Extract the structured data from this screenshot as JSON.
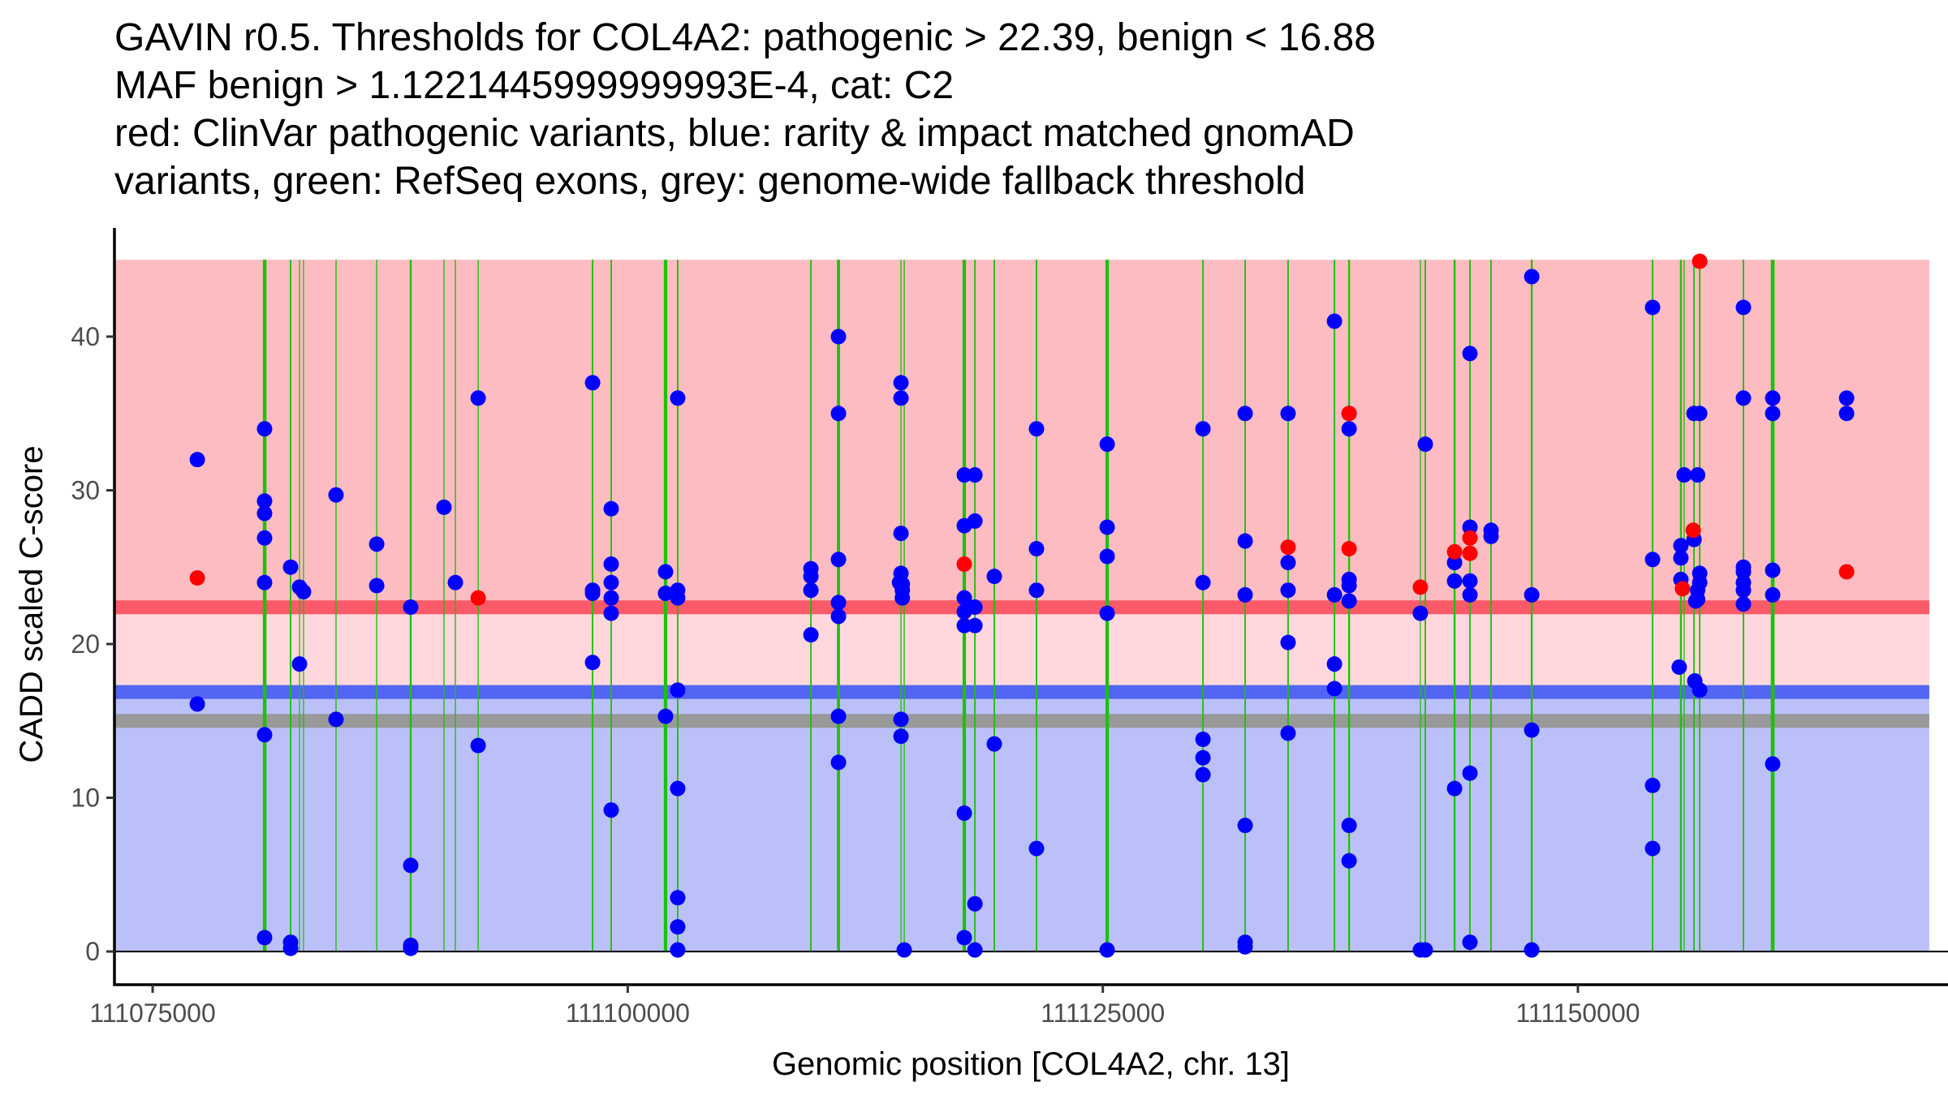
{
  "chart_data": {
    "type": "scatter",
    "title_lines": [
      "GAVIN r0.5. Thresholds for COL4A2: pathogenic > 22.39, benign < 16.88",
      "MAF benign > 1.1221445999999993E-4, cat: C2",
      "red: ClinVar pathogenic variants, blue: rarity & impact matched gnomAD",
      "variants, green: RefSeq exons, grey: genome-wide fallback threshold"
    ],
    "xlabel": "Genomic position [COL4A2, chr. 13]",
    "ylabel": "CADD scaled C-score",
    "xlim": [
      111072990,
      111169475
    ],
    "ylim": [
      -2.16,
      47.07
    ],
    "x_ticks": [
      {
        "value": 111075000,
        "label": "111075000"
      },
      {
        "value": 111100000,
        "label": "111100000"
      },
      {
        "value": 111125000,
        "label": "111125000"
      },
      {
        "value": 111150000,
        "label": "111150000"
      }
    ],
    "y_ticks": [
      {
        "value": 0,
        "label": "0"
      },
      {
        "value": 10,
        "label": "10"
      },
      {
        "value": 20,
        "label": "20"
      },
      {
        "value": 30,
        "label": "30"
      },
      {
        "value": 40,
        "label": "40"
      }
    ],
    "grid": false,
    "region_x": [
      111073040,
      111168490
    ],
    "region_ymax": 45,
    "thresholds": {
      "pathogenic": 22.39,
      "benign": 16.88,
      "genome_wide_fallback": 15.0,
      "band_halfwidth": 0.45
    },
    "colors": {
      "pathogenic_region": "#FCBCC2",
      "middle_region": "#FFD7DC",
      "benign_region": "#BBC1F8",
      "pathogenic_line": "#FB5A69",
      "benign_line": "#5266F3",
      "fallback_line": "#999999",
      "exon": "#1EC10A",
      "clinvar_point": "#FF0000",
      "gnomad_point": "#0000FF"
    },
    "exons": [
      [
        111080800,
        111080990
      ],
      [
        111082220,
        111082300
      ],
      [
        111082710,
        111082750
      ],
      [
        111082920,
        111082960
      ],
      [
        111084620,
        111084680
      ],
      [
        111086760,
        111086820
      ],
      [
        111088530,
        111088630
      ],
      [
        111090300,
        111090360
      ],
      [
        111090900,
        111090960
      ],
      [
        111092100,
        111092160
      ],
      [
        111098110,
        111098190
      ],
      [
        111099090,
        111099170
      ],
      [
        111101900,
        111102080
      ],
      [
        111102590,
        111102670
      ],
      [
        111109600,
        111109680
      ],
      [
        111111010,
        111111170
      ],
      [
        111114350,
        111114410
      ],
      [
        111114520,
        111114580
      ],
      [
        111117620,
        111117800
      ],
      [
        111118230,
        111118310
      ],
      [
        111119250,
        111119330
      ],
      [
        111121470,
        111121550
      ],
      [
        111125140,
        111125320
      ],
      [
        111130230,
        111130310
      ],
      [
        111132450,
        111132530
      ],
      [
        111134710,
        111134790
      ],
      [
        111137150,
        111137230
      ],
      [
        111137910,
        111138010
      ],
      [
        111141690,
        111141730
      ],
      [
        111141930,
        111142010
      ],
      [
        111143460,
        111143560
      ],
      [
        111144280,
        111144360
      ],
      [
        111145390,
        111145470
      ],
      [
        111147520,
        111147620
      ],
      [
        111153890,
        111153970
      ],
      [
        111155370,
        111155470
      ],
      [
        111155560,
        111155620
      ],
      [
        111156070,
        111156150
      ],
      [
        111156370,
        111156450
      ],
      [
        111158670,
        111158750
      ],
      [
        111160150,
        111160350
      ]
    ],
    "series": [
      {
        "name": "rarity & impact matched gnomAD variants",
        "color": "#0000FF",
        "points": [
          [
            111077350,
            32.0
          ],
          [
            111077350,
            16.1
          ],
          [
            111080890,
            34.0
          ],
          [
            111080890,
            29.3
          ],
          [
            111080890,
            28.5
          ],
          [
            111080890,
            26.9
          ],
          [
            111080890,
            24.0
          ],
          [
            111080890,
            14.1
          ],
          [
            111080890,
            0.9
          ],
          [
            111082260,
            25.0
          ],
          [
            111082260,
            0.6
          ],
          [
            111082260,
            0.2
          ],
          [
            111082730,
            23.7
          ],
          [
            111082730,
            18.7
          ],
          [
            111082940,
            23.4
          ],
          [
            111084650,
            29.7
          ],
          [
            111084650,
            15.1
          ],
          [
            111086790,
            26.5
          ],
          [
            111086790,
            23.8
          ],
          [
            111088580,
            22.4
          ],
          [
            111088580,
            5.6
          ],
          [
            111088580,
            0.4
          ],
          [
            111088580,
            0.2
          ],
          [
            111090330,
            28.9
          ],
          [
            111090930,
            24.0
          ],
          [
            111092130,
            36.0
          ],
          [
            111092130,
            13.4
          ],
          [
            111098150,
            37.0
          ],
          [
            111098150,
            23.5
          ],
          [
            111098150,
            23.3
          ],
          [
            111098150,
            18.8
          ],
          [
            111099130,
            28.8
          ],
          [
            111099130,
            25.2
          ],
          [
            111099130,
            24.0
          ],
          [
            111099130,
            23.0
          ],
          [
            111099130,
            22.0
          ],
          [
            111099130,
            9.2
          ],
          [
            111101990,
            24.7
          ],
          [
            111101990,
            23.3
          ],
          [
            111101990,
            15.3
          ],
          [
            111102630,
            36.0
          ],
          [
            111102630,
            23.5
          ],
          [
            111102630,
            23.0
          ],
          [
            111102630,
            17.0
          ],
          [
            111102630,
            10.6
          ],
          [
            111102630,
            3.5
          ],
          [
            111102630,
            1.6
          ],
          [
            111102630,
            0.1
          ],
          [
            111109640,
            24.9
          ],
          [
            111109640,
            24.4
          ],
          [
            111109640,
            23.5
          ],
          [
            111109640,
            20.6
          ],
          [
            111111090,
            40.0
          ],
          [
            111111090,
            35.0
          ],
          [
            111111090,
            25.5
          ],
          [
            111111090,
            22.7
          ],
          [
            111111090,
            21.8
          ],
          [
            111111090,
            15.3
          ],
          [
            111111090,
            12.3
          ],
          [
            111114380,
            37.0
          ],
          [
            111114380,
            36.0
          ],
          [
            111114380,
            27.2
          ],
          [
            111114380,
            24.6
          ],
          [
            111114300,
            24.0
          ],
          [
            111114450,
            23.9
          ],
          [
            111114450,
            23.5
          ],
          [
            111114450,
            23.0
          ],
          [
            111114380,
            15.1
          ],
          [
            111114380,
            14.0
          ],
          [
            111114550,
            0.1
          ],
          [
            111117710,
            31.0
          ],
          [
            111117710,
            27.7
          ],
          [
            111117710,
            23.0
          ],
          [
            111117710,
            22.1
          ],
          [
            111117710,
            21.2
          ],
          [
            111117710,
            9.0
          ],
          [
            111117710,
            0.9
          ],
          [
            111118270,
            31.0
          ],
          [
            111118270,
            28.0
          ],
          [
            111118270,
            22.4
          ],
          [
            111118270,
            21.2
          ],
          [
            111118270,
            3.1
          ],
          [
            111118270,
            0.1
          ],
          [
            111119290,
            24.4
          ],
          [
            111119290,
            13.5
          ],
          [
            111121510,
            34.0
          ],
          [
            111121510,
            26.2
          ],
          [
            111121510,
            23.5
          ],
          [
            111121510,
            6.7
          ],
          [
            111125230,
            33.0
          ],
          [
            111125230,
            27.6
          ],
          [
            111125230,
            25.7
          ],
          [
            111125230,
            22.0
          ],
          [
            111125230,
            0.1
          ],
          [
            111130270,
            34.0
          ],
          [
            111130270,
            24.0
          ],
          [
            111130270,
            13.8
          ],
          [
            111130270,
            12.6
          ],
          [
            111130270,
            11.5
          ],
          [
            111132490,
            35.0
          ],
          [
            111132490,
            26.7
          ],
          [
            111132490,
            23.2
          ],
          [
            111132490,
            8.2
          ],
          [
            111132490,
            0.6
          ],
          [
            111132490,
            0.3
          ],
          [
            111134750,
            35.0
          ],
          [
            111134750,
            25.3
          ],
          [
            111134750,
            23.5
          ],
          [
            111134750,
            20.1
          ],
          [
            111134750,
            14.2
          ],
          [
            111137190,
            41.0
          ],
          [
            111137190,
            23.2
          ],
          [
            111137190,
            18.7
          ],
          [
            111137190,
            17.1
          ],
          [
            111137960,
            35.0
          ],
          [
            111137960,
            34.0
          ],
          [
            111137960,
            24.2
          ],
          [
            111137960,
            23.8
          ],
          [
            111137960,
            22.8
          ],
          [
            111137960,
            8.2
          ],
          [
            111137960,
            5.9
          ],
          [
            111141710,
            22.0
          ],
          [
            111141710,
            0.1
          ],
          [
            111141970,
            33.0
          ],
          [
            111141970,
            0.1
          ],
          [
            111143510,
            25.3
          ],
          [
            111143510,
            24.1
          ],
          [
            111143510,
            10.6
          ],
          [
            111144320,
            38.9
          ],
          [
            111144320,
            27.6
          ],
          [
            111144320,
            24.1
          ],
          [
            111144320,
            23.2
          ],
          [
            111144320,
            11.6
          ],
          [
            111144320,
            0.6
          ],
          [
            111145430,
            27.4
          ],
          [
            111145430,
            27.0
          ],
          [
            111147570,
            43.9
          ],
          [
            111147570,
            23.2
          ],
          [
            111147570,
            14.4
          ],
          [
            111147570,
            0.1
          ],
          [
            111153930,
            41.9
          ],
          [
            111153930,
            25.5
          ],
          [
            111153930,
            10.8
          ],
          [
            111153930,
            6.7
          ],
          [
            111155590,
            31.0
          ],
          [
            111155420,
            26.4
          ],
          [
            111155420,
            25.6
          ],
          [
            111155420,
            24.2
          ],
          [
            111155330,
            18.5
          ],
          [
            111156110,
            35.0
          ],
          [
            111156410,
            35.0
          ],
          [
            111156300,
            31.0
          ],
          [
            111156110,
            26.8
          ],
          [
            111156410,
            24.6
          ],
          [
            111156410,
            24.0
          ],
          [
            111156300,
            23.5
          ],
          [
            111156300,
            22.9
          ],
          [
            111156200,
            22.8
          ],
          [
            111156150,
            17.6
          ],
          [
            111156410,
            17.0
          ],
          [
            111158710,
            41.9
          ],
          [
            111158710,
            36.0
          ],
          [
            111158710,
            25.0
          ],
          [
            111158710,
            24.7
          ],
          [
            111158710,
            24.0
          ],
          [
            111158710,
            23.5
          ],
          [
            111158710,
            22.6
          ],
          [
            111160250,
            36.0
          ],
          [
            111160250,
            35.0
          ],
          [
            111160250,
            24.8
          ],
          [
            111160250,
            23.2
          ],
          [
            111160250,
            12.2
          ],
          [
            111164140,
            36.0
          ],
          [
            111164140,
            35.0
          ]
        ]
      },
      {
        "name": "ClinVar pathogenic variants",
        "color": "#FF0000",
        "points": [
          [
            111077350,
            24.3
          ],
          [
            111092130,
            23.0
          ],
          [
            111117710,
            25.2
          ],
          [
            111134750,
            26.3
          ],
          [
            111137960,
            35.0
          ],
          [
            111137960,
            26.2
          ],
          [
            111141710,
            23.7
          ],
          [
            111143510,
            26.0
          ],
          [
            111144320,
            26.9
          ],
          [
            111144320,
            25.9
          ],
          [
            111155500,
            23.6
          ],
          [
            111156070,
            27.4
          ],
          [
            111156410,
            44.9
          ],
          [
            111164140,
            24.7
          ]
        ]
      }
    ]
  }
}
